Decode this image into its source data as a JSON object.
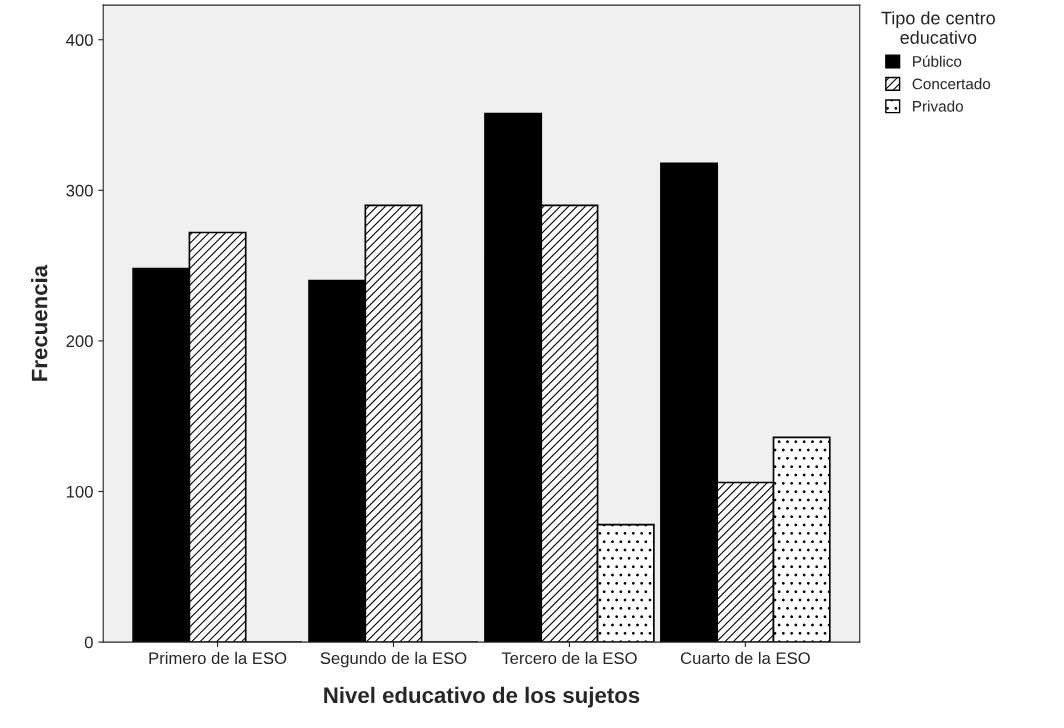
{
  "chart_data": {
    "type": "bar",
    "xlabel": "Nivel educativo de los sujetos",
    "ylabel": "Frecuencia",
    "legend_title": "Tipo de centro\neducativo",
    "categories": [
      "Primero de la ESO",
      "Segundo de la ESO",
      "Tercero de la ESO",
      "Cuarto de la ESO"
    ],
    "series": [
      {
        "name": "Público",
        "color": "#000000",
        "values": [
          248,
          240,
          351,
          318
        ]
      },
      {
        "name": "Concertado",
        "color": "#000000",
        "values": [
          272,
          290,
          290,
          106
        ]
      },
      {
        "name": "Privado",
        "color": "#000000",
        "values": [
          0,
          0,
          78,
          136
        ]
      }
    ],
    "ylim": [
      0,
      423
    ],
    "yticks": [
      0,
      100,
      200,
      300,
      400
    ],
    "grid": false,
    "legend": "top right"
  }
}
